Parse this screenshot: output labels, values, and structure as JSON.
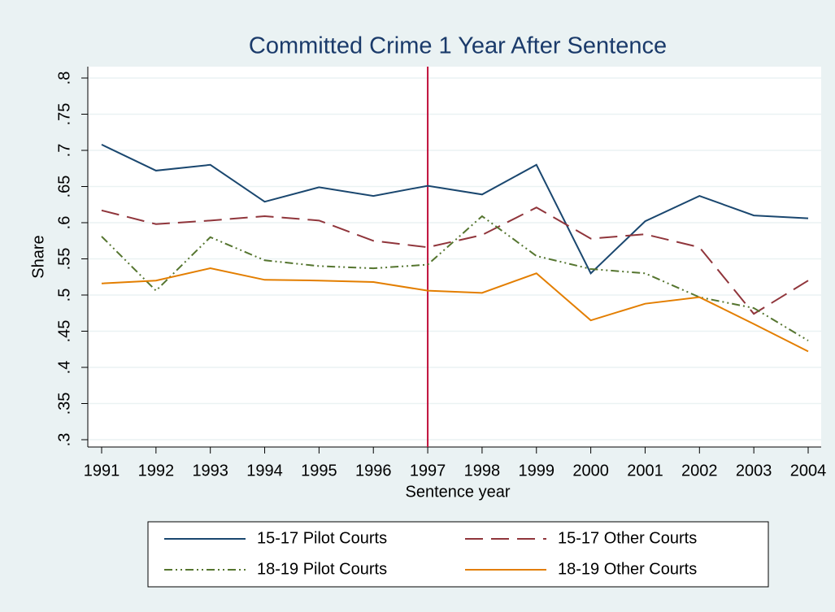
{
  "chart_data": {
    "type": "line",
    "title": "Committed Crime 1 Year After Sentence",
    "xlabel": "Sentence year",
    "ylabel": "Share",
    "x": [
      1991,
      1992,
      1993,
      1994,
      1995,
      1996,
      1997,
      1998,
      1999,
      2000,
      2001,
      2002,
      2003,
      2004
    ],
    "xlim": [
      1991,
      2004
    ],
    "xticks": [
      1991,
      1992,
      1993,
      1994,
      1995,
      1996,
      1997,
      1998,
      1999,
      2000,
      2001,
      2002,
      2003,
      2004
    ],
    "ylim": [
      0.3,
      0.8
    ],
    "yticks": [
      {
        "value": 0.3,
        "label": ".3"
      },
      {
        "value": 0.35,
        "label": ".35"
      },
      {
        "value": 0.4,
        "label": ".4"
      },
      {
        "value": 0.45,
        "label": ".45"
      },
      {
        "value": 0.5,
        "label": ".5"
      },
      {
        "value": 0.55,
        "label": ".55"
      },
      {
        "value": 0.6,
        "label": ".6"
      },
      {
        "value": 0.65,
        "label": ".65"
      },
      {
        "value": 0.7,
        "label": ".7"
      },
      {
        "value": 0.75,
        "label": ".75"
      },
      {
        "value": 0.8,
        "label": ".8"
      }
    ],
    "grid": true,
    "vline": {
      "x": 1997,
      "color": "#c0103a"
    },
    "legend": "bottom",
    "series": [
      {
        "name": "15-17 Pilot Courts",
        "color": "#1a476f",
        "style": "solid",
        "values": [
          0.708,
          0.672,
          0.68,
          0.629,
          0.649,
          0.637,
          0.651,
          0.639,
          0.68,
          0.53,
          0.602,
          0.637,
          0.61,
          0.606
        ]
      },
      {
        "name": "15-17 Other Courts",
        "color": "#90353b",
        "style": "dash",
        "values": [
          0.617,
          0.598,
          0.603,
          0.609,
          0.603,
          0.575,
          0.566,
          0.583,
          0.621,
          0.578,
          0.584,
          0.566,
          0.474,
          0.52
        ]
      },
      {
        "name": "18-19 Pilot Courts",
        "color": "#55752f",
        "style": "dashdot",
        "values": [
          0.581,
          0.506,
          0.58,
          0.548,
          0.54,
          0.537,
          0.542,
          0.609,
          0.554,
          0.536,
          0.53,
          0.497,
          0.482,
          0.437
        ]
      },
      {
        "name": "18-19 Other Courts",
        "color": "#e37e00",
        "style": "solid",
        "values": [
          0.516,
          0.52,
          0.537,
          0.521,
          0.52,
          0.518,
          0.506,
          0.503,
          0.53,
          0.465,
          0.488,
          0.497,
          0.46,
          0.422
        ]
      }
    ]
  }
}
